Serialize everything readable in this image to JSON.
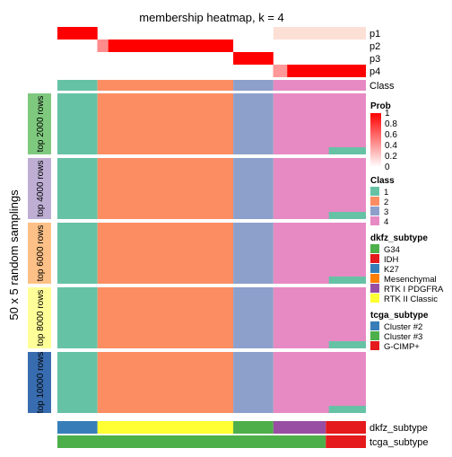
{
  "title": "membership heatmap, k = 4",
  "y_axis_title": "50 x 5 random samplings",
  "row_groups": [
    {
      "label": "top 2000 rows",
      "color": "#7FC97F"
    },
    {
      "label": "top 4000 rows",
      "color": "#BEAED4"
    },
    {
      "label": "top 6000 rows",
      "color": "#FDC086"
    },
    {
      "label": "top 8000 rows",
      "color": "#FFFF99"
    },
    {
      "label": "top 10000 rows",
      "color": "#386CB0"
    }
  ],
  "prob_rows": [
    "p1",
    "p2",
    "p3",
    "p4"
  ],
  "class_row_label": "Class",
  "bottom_rows": [
    "dkfz_subtype",
    "tcga_subtype"
  ],
  "legends": {
    "prob": {
      "title": "Prob",
      "ticks": [
        "1",
        "0.8",
        "0.6",
        "0.4",
        "0.2",
        "0"
      ],
      "color_low": "#FFFFFF",
      "color_high": "#FF0000"
    },
    "class": {
      "title": "Class",
      "items": [
        {
          "label": "1",
          "color": "#66C2A5"
        },
        {
          "label": "2",
          "color": "#FC8D62"
        },
        {
          "label": "3",
          "color": "#8DA0CB"
        },
        {
          "label": "4",
          "color": "#E78AC3"
        }
      ]
    },
    "dkfz_subtype": {
      "title": "dkfz_subtype",
      "items": [
        {
          "label": "G34",
          "color": "#4DAF4A"
        },
        {
          "label": "IDH",
          "color": "#E41A1C"
        },
        {
          "label": "K27",
          "color": "#377EB8"
        },
        {
          "label": "Mesenchymal",
          "color": "#FF7F00"
        },
        {
          "label": "RTK I PDGFRA",
          "color": "#984EA3"
        },
        {
          "label": "RTK II Classic",
          "color": "#FFFF33"
        }
      ]
    },
    "tcga_subtype": {
      "title": "tcga_subtype",
      "items": [
        {
          "label": "Cluster #2",
          "color": "#377EB8"
        },
        {
          "label": "Cluster #3",
          "color": "#4DAF4A"
        },
        {
          "label": "G-CIMP+",
          "color": "#E41A1C"
        }
      ]
    }
  },
  "chart_data": {
    "type": "heatmap",
    "k": 4,
    "class_segments": [
      {
        "class": "1",
        "fraction": 0.13
      },
      {
        "class": "2",
        "fraction": 0.44
      },
      {
        "class": "3",
        "fraction": 0.13
      },
      {
        "class": "4",
        "fraction": 0.3
      }
    ],
    "dkfz_segments": [
      {
        "subtype": "K27",
        "fraction": 0.13
      },
      {
        "subtype": "RTK II Classic",
        "fraction": 0.44
      },
      {
        "subtype": "G34",
        "fraction": 0.13
      },
      {
        "subtype": "RTK I PDGFRA",
        "fraction": 0.17
      },
      {
        "subtype": "IDH",
        "fraction": 0.13
      }
    ],
    "tcga_segments": [
      {
        "subtype": "Cluster #3",
        "fraction": 0.87
      },
      {
        "subtype": "G-CIMP+",
        "fraction": 0.13
      }
    ]
  }
}
